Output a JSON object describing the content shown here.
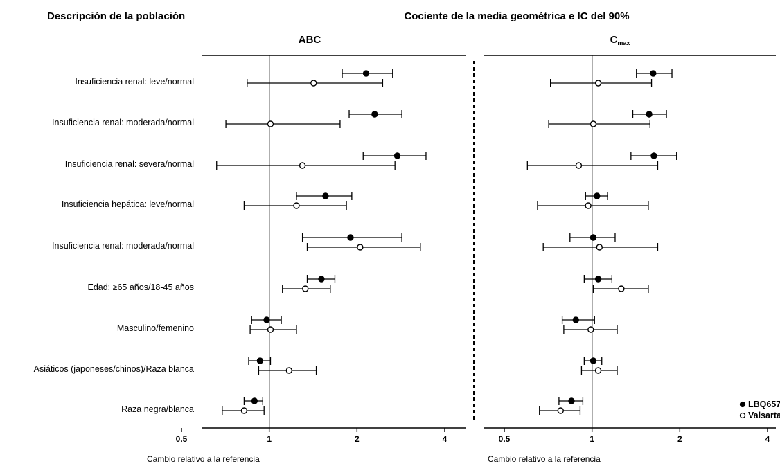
{
  "chart_data": {
    "type": "forest",
    "header_left": "Descripción de la población",
    "header_center": "Cociente de la media geométrica e IC del 90%",
    "x_scale": "log",
    "xlim": [
      0.45,
      4.3
    ],
    "reference_value": 1,
    "categories": [
      "Insuficiencia renal: leve/normal",
      "Insuficiencia renal: moderada/normal",
      "Insuficiencia renal: severa/normal",
      "Insuficiencia hepática: leve/normal",
      "Insuficiencia renal: moderada/normal",
      "Edad: ≥65 años/18-45 años",
      "Masculino/femenino",
      "Asiáticos (japoneses/chinos)/Raza blanca",
      "Raza negra/blanca"
    ],
    "series_legend": [
      {
        "key": "lbq",
        "name": "LBQ657",
        "marker": "filled"
      },
      {
        "key": "val",
        "name": "Valsartan",
        "marker": "open"
      }
    ],
    "panels": [
      {
        "title": "ABC",
        "title_sub": "",
        "xticks": [
          0.5,
          1,
          2,
          4
        ],
        "xtick_labels": [
          "0.5",
          "1",
          "2",
          "4"
        ],
        "xlabel": "Cambio relativo a la referencia",
        "rows": [
          {
            "lbq": {
              "est": 2.15,
              "lo": 1.78,
              "hi": 2.65
            },
            "val": {
              "est": 1.42,
              "lo": 0.84,
              "hi": 2.45
            }
          },
          {
            "lbq": {
              "est": 2.3,
              "lo": 1.88,
              "hi": 2.85
            },
            "val": {
              "est": 1.01,
              "lo": 0.71,
              "hi": 1.75
            }
          },
          {
            "lbq": {
              "est": 2.75,
              "lo": 2.1,
              "hi": 3.45
            },
            "val": {
              "est": 1.3,
              "lo": 0.66,
              "hi": 2.7
            }
          },
          {
            "lbq": {
              "est": 1.56,
              "lo": 1.24,
              "hi": 1.92
            },
            "val": {
              "est": 1.24,
              "lo": 0.82,
              "hi": 1.84
            }
          },
          {
            "lbq": {
              "est": 1.9,
              "lo": 1.3,
              "hi": 2.85
            },
            "val": {
              "est": 2.05,
              "lo": 1.35,
              "hi": 3.3
            }
          },
          {
            "lbq": {
              "est": 1.51,
              "lo": 1.35,
              "hi": 1.68
            },
            "val": {
              "est": 1.33,
              "lo": 1.11,
              "hi": 1.62
            }
          },
          {
            "lbq": {
              "est": 0.98,
              "lo": 0.87,
              "hi": 1.1
            },
            "val": {
              "est": 1.01,
              "lo": 0.86,
              "hi": 1.24
            }
          },
          {
            "lbq": {
              "est": 0.93,
              "lo": 0.85,
              "hi": 1.01
            },
            "val": {
              "est": 1.17,
              "lo": 0.92,
              "hi": 1.45
            }
          },
          {
            "lbq": {
              "est": 0.89,
              "lo": 0.82,
              "hi": 0.95
            },
            "val": {
              "est": 0.82,
              "lo": 0.69,
              "hi": 0.96
            }
          }
        ]
      },
      {
        "title": "C",
        "title_sub": "max",
        "xticks": [
          0.5,
          1,
          2,
          4
        ],
        "xtick_labels": [
          "0.5",
          "1",
          "2",
          "4"
        ],
        "xlabel": "Cambio relativo a la referencia",
        "rows": [
          {
            "lbq": {
              "est": 1.62,
              "lo": 1.42,
              "hi": 1.88
            },
            "val": {
              "est": 1.05,
              "lo": 0.72,
              "hi": 1.6
            }
          },
          {
            "lbq": {
              "est": 1.57,
              "lo": 1.38,
              "hi": 1.8
            },
            "val": {
              "est": 1.01,
              "lo": 0.71,
              "hi": 1.58
            }
          },
          {
            "lbq": {
              "est": 1.63,
              "lo": 1.36,
              "hi": 1.95
            },
            "val": {
              "est": 0.9,
              "lo": 0.6,
              "hi": 1.68
            }
          },
          {
            "lbq": {
              "est": 1.04,
              "lo": 0.95,
              "hi": 1.13
            },
            "val": {
              "est": 0.97,
              "lo": 0.65,
              "hi": 1.56
            }
          },
          {
            "lbq": {
              "est": 1.01,
              "lo": 0.84,
              "hi": 1.2
            },
            "val": {
              "est": 1.06,
              "lo": 0.68,
              "hi": 1.68
            }
          },
          {
            "lbq": {
              "est": 1.05,
              "lo": 0.94,
              "hi": 1.17
            },
            "val": {
              "est": 1.26,
              "lo": 1.01,
              "hi": 1.56
            }
          },
          {
            "lbq": {
              "est": 0.88,
              "lo": 0.79,
              "hi": 1.02
            },
            "val": {
              "est": 0.99,
              "lo": 0.8,
              "hi": 1.22
            }
          },
          {
            "lbq": {
              "est": 1.01,
              "lo": 0.94,
              "hi": 1.08
            },
            "val": {
              "est": 1.05,
              "lo": 0.92,
              "hi": 1.22
            }
          },
          {
            "lbq": {
              "est": 0.85,
              "lo": 0.77,
              "hi": 0.93
            },
            "val": {
              "est": 0.78,
              "lo": 0.66,
              "hi": 0.91
            }
          }
        ]
      }
    ]
  }
}
